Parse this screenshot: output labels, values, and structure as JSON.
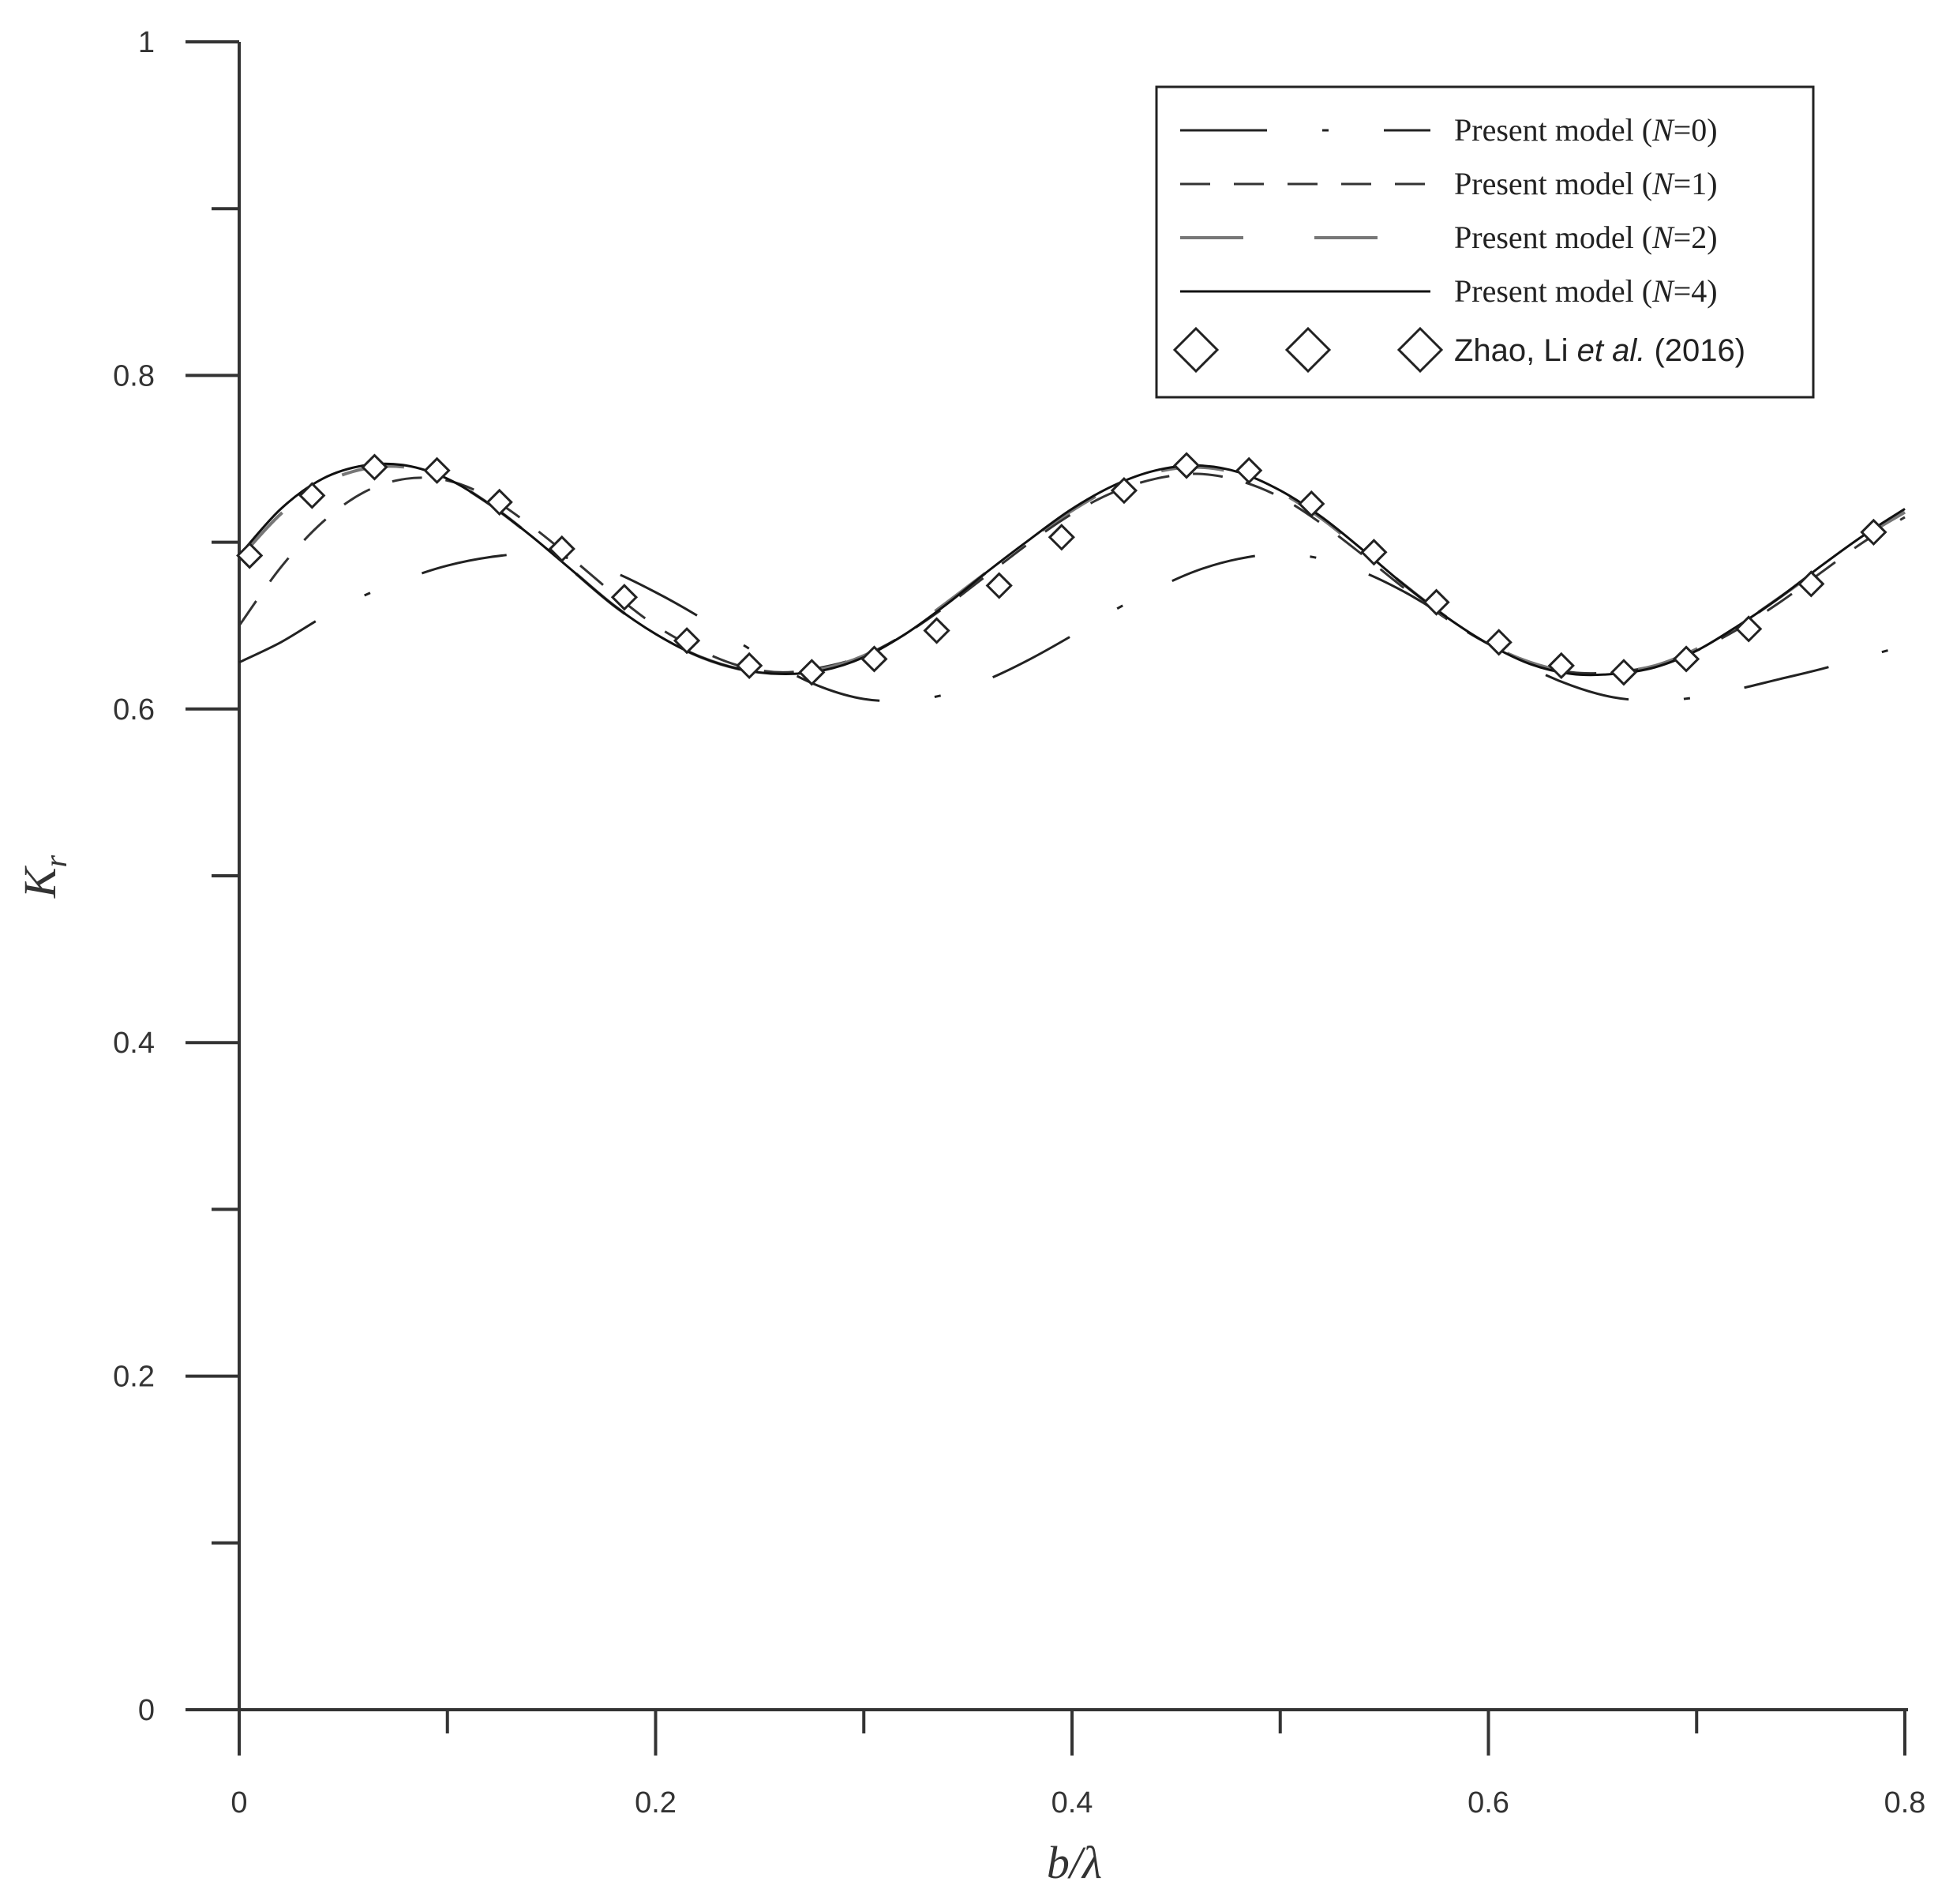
{
  "chart_data": {
    "type": "line",
    "xlabel": "b/λ",
    "ylabel": "K_r",
    "ylabel_main": "K",
    "ylabel_sub": "r",
    "xlim": [
      0,
      0.8
    ],
    "ylim": [
      0,
      1
    ],
    "x_ticks": [
      0,
      0.2,
      0.4,
      0.6,
      0.8
    ],
    "x_tick_labels": [
      "0",
      "0.2",
      "0.4",
      "0.6",
      "0.8"
    ],
    "x_minor_ticks": [
      0.1,
      0.3,
      0.5,
      0.7
    ],
    "y_ticks": [
      0,
      0.2,
      0.4,
      0.6,
      0.8,
      1
    ],
    "y_tick_labels": [
      "0",
      "0.2",
      "0.4",
      "0.6",
      "0.8",
      "1"
    ],
    "y_minor_ticks": [
      0.1,
      0.3,
      0.5,
      0.7,
      0.9
    ],
    "grid": false,
    "legend_position": "top-right",
    "series": [
      {
        "name": "Present model (N=0)",
        "legend_prefix": "Present model (",
        "legend_var": "N",
        "legend_suffix": "=0)",
        "style": "long-dash-dot",
        "color": "#222222",
        "x": [
          0,
          0.02,
          0.04,
          0.06,
          0.08,
          0.1,
          0.12,
          0.14,
          0.16,
          0.18,
          0.2,
          0.22,
          0.24,
          0.26,
          0.28,
          0.3,
          0.32,
          0.34,
          0.36,
          0.38,
          0.4,
          0.42,
          0.44,
          0.46,
          0.48,
          0.5,
          0.52,
          0.54,
          0.56,
          0.58,
          0.6,
          0.62,
          0.64,
          0.66,
          0.68,
          0.7,
          0.72,
          0.74,
          0.76,
          0.78,
          0.8
        ],
        "values": [
          0.628,
          0.64,
          0.655,
          0.668,
          0.678,
          0.686,
          0.691,
          0.693,
          0.69,
          0.682,
          0.67,
          0.656,
          0.64,
          0.625,
          0.613,
          0.606,
          0.605,
          0.609,
          0.618,
          0.63,
          0.644,
          0.659,
          0.672,
          0.683,
          0.69,
          0.693,
          0.69,
          0.682,
          0.67,
          0.655,
          0.64,
          0.625,
          0.614,
          0.607,
          0.605,
          0.607,
          0.612,
          0.618,
          0.624,
          0.631,
          0.638
        ]
      },
      {
        "name": "Present model (N=1)",
        "legend_prefix": "Present model (",
        "legend_var": "N",
        "legend_suffix": "=1)",
        "style": "dash",
        "color": "#333333",
        "x": [
          0,
          0.02,
          0.04,
          0.06,
          0.08,
          0.1,
          0.12,
          0.14,
          0.16,
          0.18,
          0.2,
          0.22,
          0.24,
          0.26,
          0.28,
          0.3,
          0.32,
          0.34,
          0.36,
          0.38,
          0.4,
          0.42,
          0.44,
          0.46,
          0.48,
          0.5,
          0.52,
          0.54,
          0.56,
          0.58,
          0.6,
          0.62,
          0.64,
          0.66,
          0.68,
          0.7,
          0.72,
          0.74,
          0.76,
          0.78,
          0.8
        ],
        "values": [
          0.65,
          0.685,
          0.712,
          0.73,
          0.738,
          0.737,
          0.727,
          0.71,
          0.69,
          0.669,
          0.65,
          0.636,
          0.626,
          0.622,
          0.625,
          0.632,
          0.645,
          0.662,
          0.681,
          0.7,
          0.717,
          0.73,
          0.738,
          0.741,
          0.737,
          0.727,
          0.711,
          0.692,
          0.672,
          0.654,
          0.639,
          0.628,
          0.622,
          0.622,
          0.626,
          0.635,
          0.648,
          0.664,
          0.682,
          0.7,
          0.715
        ]
      },
      {
        "name": "Present model (N=2)",
        "legend_prefix": "Present model (",
        "legend_var": "N",
        "legend_suffix": "=2)",
        "style": "long-dash",
        "color": "#777777",
        "x": [
          0,
          0.02,
          0.04,
          0.06,
          0.08,
          0.1,
          0.12,
          0.14,
          0.16,
          0.18,
          0.2,
          0.22,
          0.24,
          0.26,
          0.28,
          0.3,
          0.32,
          0.34,
          0.36,
          0.38,
          0.4,
          0.42,
          0.44,
          0.46,
          0.48,
          0.5,
          0.52,
          0.54,
          0.56,
          0.58,
          0.6,
          0.62,
          0.64,
          0.66,
          0.68,
          0.7,
          0.72,
          0.74,
          0.76,
          0.78,
          0.8
        ],
        "values": [
          0.69,
          0.717,
          0.735,
          0.744,
          0.745,
          0.738,
          0.723,
          0.704,
          0.683,
          0.662,
          0.645,
          0.632,
          0.624,
          0.621,
          0.624,
          0.632,
          0.646,
          0.664,
          0.683,
          0.702,
          0.719,
          0.733,
          0.742,
          0.745,
          0.741,
          0.73,
          0.714,
          0.694,
          0.674,
          0.655,
          0.639,
          0.628,
          0.622,
          0.622,
          0.626,
          0.636,
          0.65,
          0.667,
          0.685,
          0.703,
          0.718
        ]
      },
      {
        "name": "Present model (N=4)",
        "legend_prefix": "Present model (",
        "legend_var": "N",
        "legend_suffix": "=4)",
        "style": "solid",
        "color": "#111111",
        "x": [
          0,
          0.02,
          0.04,
          0.06,
          0.08,
          0.1,
          0.12,
          0.14,
          0.16,
          0.18,
          0.2,
          0.22,
          0.24,
          0.26,
          0.28,
          0.3,
          0.32,
          0.34,
          0.36,
          0.38,
          0.4,
          0.42,
          0.44,
          0.46,
          0.48,
          0.5,
          0.52,
          0.54,
          0.56,
          0.58,
          0.6,
          0.62,
          0.64,
          0.66,
          0.68,
          0.7,
          0.72,
          0.74,
          0.76,
          0.78,
          0.8
        ],
        "values": [
          0.692,
          0.72,
          0.738,
          0.746,
          0.746,
          0.738,
          0.723,
          0.704,
          0.683,
          0.662,
          0.645,
          0.632,
          0.624,
          0.621,
          0.623,
          0.631,
          0.645,
          0.663,
          0.683,
          0.702,
          0.72,
          0.734,
          0.743,
          0.746,
          0.742,
          0.731,
          0.715,
          0.695,
          0.674,
          0.655,
          0.639,
          0.627,
          0.621,
          0.621,
          0.625,
          0.635,
          0.65,
          0.667,
          0.686,
          0.704,
          0.72
        ]
      }
    ],
    "reference": {
      "name": "Zhao, Li et al. (2016)",
      "legend_prefix": "Zhao, Li ",
      "legend_italic": "et al.",
      "legend_suffix": " (2016)",
      "marker": "diamond",
      "x": [
        0.005,
        0.035,
        0.065,
        0.095,
        0.125,
        0.155,
        0.185,
        0.215,
        0.245,
        0.275,
        0.305,
        0.335,
        0.365,
        0.395,
        0.425,
        0.455,
        0.485,
        0.515,
        0.545,
        0.575,
        0.605,
        0.635,
        0.665,
        0.695,
        0.725,
        0.755,
        0.785
      ],
      "values": [
        0.692,
        0.728,
        0.745,
        0.743,
        0.724,
        0.696,
        0.667,
        0.641,
        0.626,
        0.622,
        0.63,
        0.647,
        0.674,
        0.703,
        0.731,
        0.746,
        0.743,
        0.723,
        0.694,
        0.664,
        0.64,
        0.626,
        0.622,
        0.63,
        0.648,
        0.675,
        0.706
      ]
    }
  }
}
